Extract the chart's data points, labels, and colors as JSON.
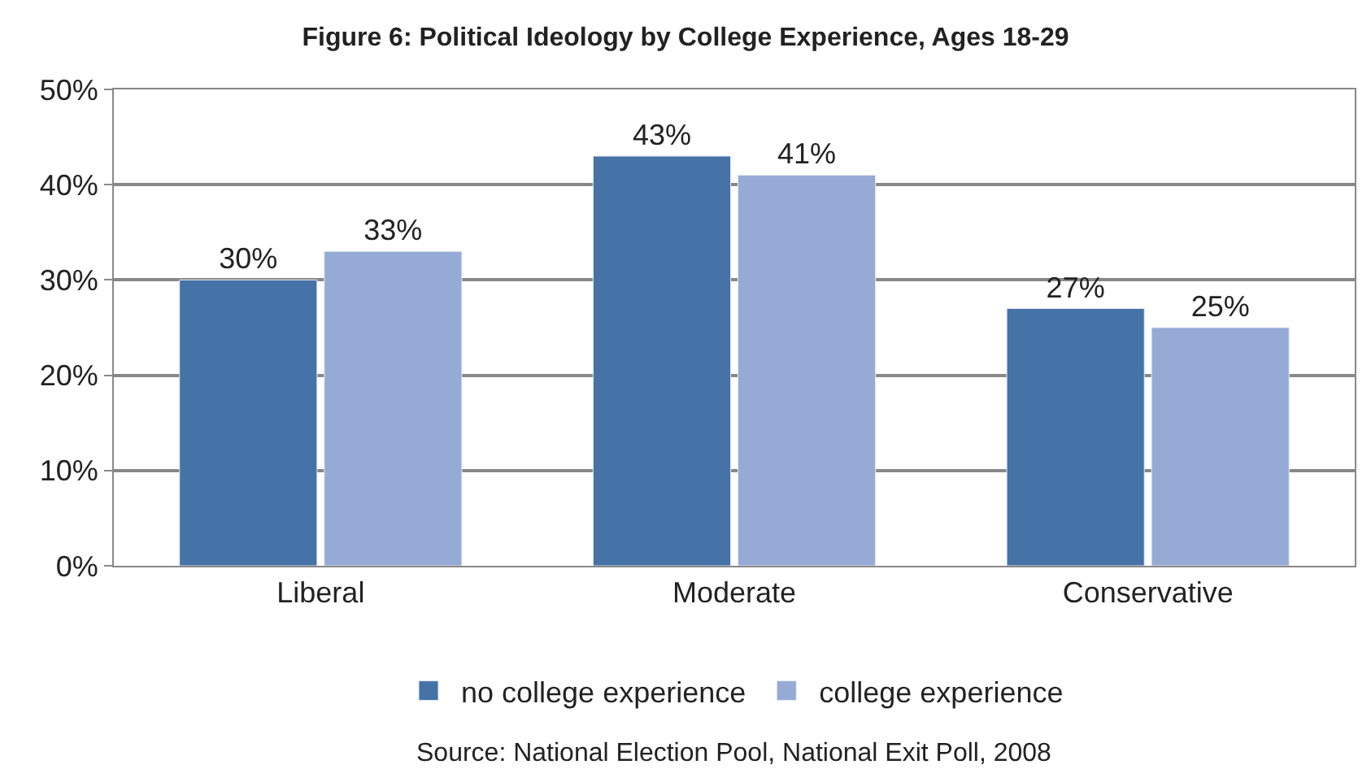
{
  "chart_data": {
    "type": "bar",
    "title": "Figure 6: Political Ideology by College Experience, Ages 18-29",
    "categories": [
      "Liberal",
      "Moderate",
      "Conservative"
    ],
    "series": [
      {
        "name": "no college experience",
        "color": "#4572a7",
        "values": [
          30,
          43,
          27
        ],
        "value_labels": [
          "30%",
          "43%",
          "27%"
        ]
      },
      {
        "name": "college experience",
        "color": "#95abd5",
        "values": [
          33,
          41,
          25
        ],
        "value_labels": [
          "33%",
          "41%",
          "25%"
        ]
      }
    ],
    "ylim": [
      0,
      50
    ],
    "yticks": [
      {
        "value": 0,
        "label": "0%"
      },
      {
        "value": 10,
        "label": "10%"
      },
      {
        "value": 20,
        "label": "20%"
      },
      {
        "value": 30,
        "label": "30%"
      },
      {
        "value": 40,
        "label": "40%"
      },
      {
        "value": 50,
        "label": "50%"
      }
    ],
    "grid": "y",
    "legend": "bottom",
    "annotations": [
      "Source: National Election Pool, National Exit Poll, 2008"
    ]
  }
}
